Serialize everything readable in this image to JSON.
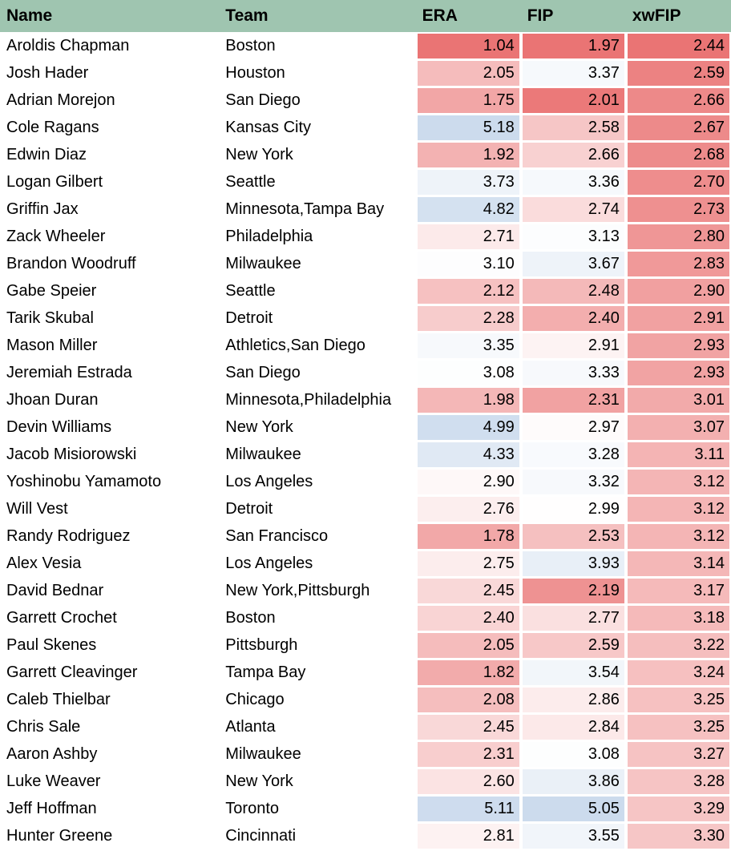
{
  "headers": [
    "Name",
    "Team",
    "ERA",
    "FIP",
    "xwFIP"
  ],
  "color_scale": {
    "low": "#ea7474",
    "mid": "#ffffff",
    "high": "#ccdbed",
    "header_bg": "#9fc5b0"
  },
  "rows": [
    {
      "name": "Aroldis Chapman",
      "team": "Boston",
      "era": "1.04",
      "fip": "1.97",
      "xwfip": "2.44"
    },
    {
      "name": "Josh Hader",
      "team": "Houston",
      "era": "2.05",
      "fip": "3.37",
      "xwfip": "2.59"
    },
    {
      "name": "Adrian Morejon",
      "team": "San Diego",
      "era": "1.75",
      "fip": "2.01",
      "xwfip": "2.66"
    },
    {
      "name": "Cole Ragans",
      "team": "Kansas City",
      "era": "5.18",
      "fip": "2.58",
      "xwfip": "2.67"
    },
    {
      "name": "Edwin Diaz",
      "team": "New York",
      "era": "1.92",
      "fip": "2.66",
      "xwfip": "2.68"
    },
    {
      "name": "Logan Gilbert",
      "team": "Seattle",
      "era": "3.73",
      "fip": "3.36",
      "xwfip": "2.70"
    },
    {
      "name": "Griffin Jax",
      "team": "Minnesota,Tampa Bay",
      "era": "4.82",
      "fip": "2.74",
      "xwfip": "2.73"
    },
    {
      "name": "Zack Wheeler",
      "team": "Philadelphia",
      "era": "2.71",
      "fip": "3.13",
      "xwfip": "2.80"
    },
    {
      "name": "Brandon Woodruff",
      "team": "Milwaukee",
      "era": "3.10",
      "fip": "3.67",
      "xwfip": "2.83"
    },
    {
      "name": "Gabe Speier",
      "team": "Seattle",
      "era": "2.12",
      "fip": "2.48",
      "xwfip": "2.90"
    },
    {
      "name": "Tarik Skubal",
      "team": "Detroit",
      "era": "2.28",
      "fip": "2.40",
      "xwfip": "2.91"
    },
    {
      "name": "Mason Miller",
      "team": "Athletics,San Diego",
      "era": "3.35",
      "fip": "2.91",
      "xwfip": "2.93"
    },
    {
      "name": "Jeremiah Estrada",
      "team": "San Diego",
      "era": "3.08",
      "fip": "3.33",
      "xwfip": "2.93"
    },
    {
      "name": "Jhoan Duran",
      "team": "Minnesota,Philadelphia",
      "era": "1.98",
      "fip": "2.31",
      "xwfip": "3.01"
    },
    {
      "name": "Devin Williams",
      "team": "New York",
      "era": "4.99",
      "fip": "2.97",
      "xwfip": "3.07"
    },
    {
      "name": "Jacob Misiorowski",
      "team": "Milwaukee",
      "era": "4.33",
      "fip": "3.28",
      "xwfip": "3.11"
    },
    {
      "name": "Yoshinobu Yamamoto",
      "team": "Los Angeles",
      "era": "2.90",
      "fip": "3.32",
      "xwfip": "3.12"
    },
    {
      "name": "Will Vest",
      "team": "Detroit",
      "era": "2.76",
      "fip": "2.99",
      "xwfip": "3.12"
    },
    {
      "name": "Randy Rodriguez",
      "team": "San Francisco",
      "era": "1.78",
      "fip": "2.53",
      "xwfip": "3.12"
    },
    {
      "name": "Alex Vesia",
      "team": "Los Angeles",
      "era": "2.75",
      "fip": "3.93",
      "xwfip": "3.14"
    },
    {
      "name": "David Bednar",
      "team": "New York,Pittsburgh",
      "era": "2.45",
      "fip": "2.19",
      "xwfip": "3.17"
    },
    {
      "name": "Garrett Crochet",
      "team": "Boston",
      "era": "2.40",
      "fip": "2.77",
      "xwfip": "3.18"
    },
    {
      "name": "Paul Skenes",
      "team": "Pittsburgh",
      "era": "2.05",
      "fip": "2.59",
      "xwfip": "3.22"
    },
    {
      "name": "Garrett Cleavinger",
      "team": "Tampa Bay",
      "era": "1.82",
      "fip": "3.54",
      "xwfip": "3.24"
    },
    {
      "name": "Caleb Thielbar",
      "team": "Chicago",
      "era": "2.08",
      "fip": "2.86",
      "xwfip": "3.25"
    },
    {
      "name": "Chris Sale",
      "team": "Atlanta",
      "era": "2.45",
      "fip": "2.84",
      "xwfip": "3.25"
    },
    {
      "name": "Aaron Ashby",
      "team": "Milwaukee",
      "era": "2.31",
      "fip": "3.08",
      "xwfip": "3.27"
    },
    {
      "name": "Luke Weaver",
      "team": "New York",
      "era": "2.60",
      "fip": "3.86",
      "xwfip": "3.28"
    },
    {
      "name": "Jeff Hoffman",
      "team": "Toronto",
      "era": "5.11",
      "fip": "5.05",
      "xwfip": "3.29"
    },
    {
      "name": "Hunter Greene",
      "team": "Cincinnati",
      "era": "2.81",
      "fip": "3.55",
      "xwfip": "3.30"
    }
  ]
}
